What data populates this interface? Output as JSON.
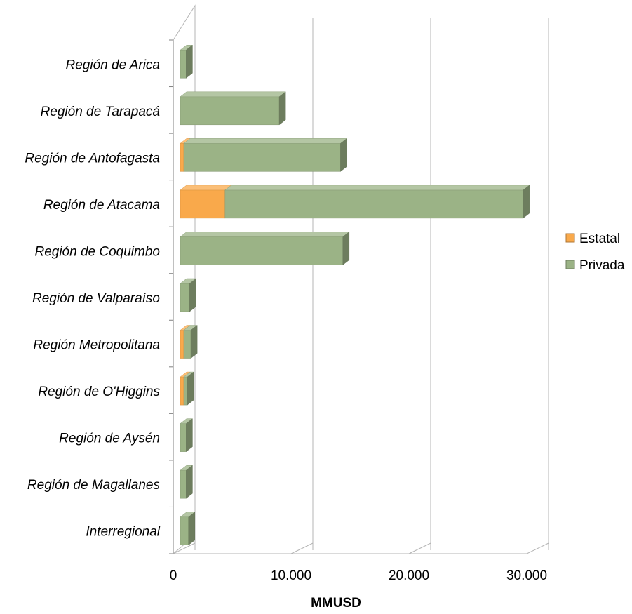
{
  "chart_data": {
    "type": "bar",
    "orientation": "horizontal",
    "stacked": true,
    "style": "3d",
    "categories": [
      "Región de Arica",
      "Región de Tarapacá",
      "Región de Antofagasta",
      "Región de Atacama",
      "Región de Coquimbo",
      "Región de Valparaíso",
      "Región Metropolitana",
      "Región de O'Higgins",
      "Región de Aysén",
      "Región de Magallanes",
      "Interregional"
    ],
    "series": [
      {
        "name": "Estatal",
        "color": "#F9A94B",
        "values": [
          0,
          0,
          300,
          3800,
          0,
          0,
          300,
          300,
          0,
          0,
          0
        ]
      },
      {
        "name": "Privada",
        "color": "#9BB386",
        "values": [
          500,
          8400,
          13300,
          25300,
          13800,
          800,
          600,
          300,
          500,
          500,
          700
        ]
      }
    ],
    "xlabel": "MMUSD",
    "xlim": [
      0,
      30000
    ],
    "x_ticks": [
      "0",
      "10.000",
      "20.000",
      "30.000"
    ],
    "x_tick_values": [
      0,
      10000,
      20000,
      30000
    ],
    "grid": true,
    "legend_position": "right"
  }
}
